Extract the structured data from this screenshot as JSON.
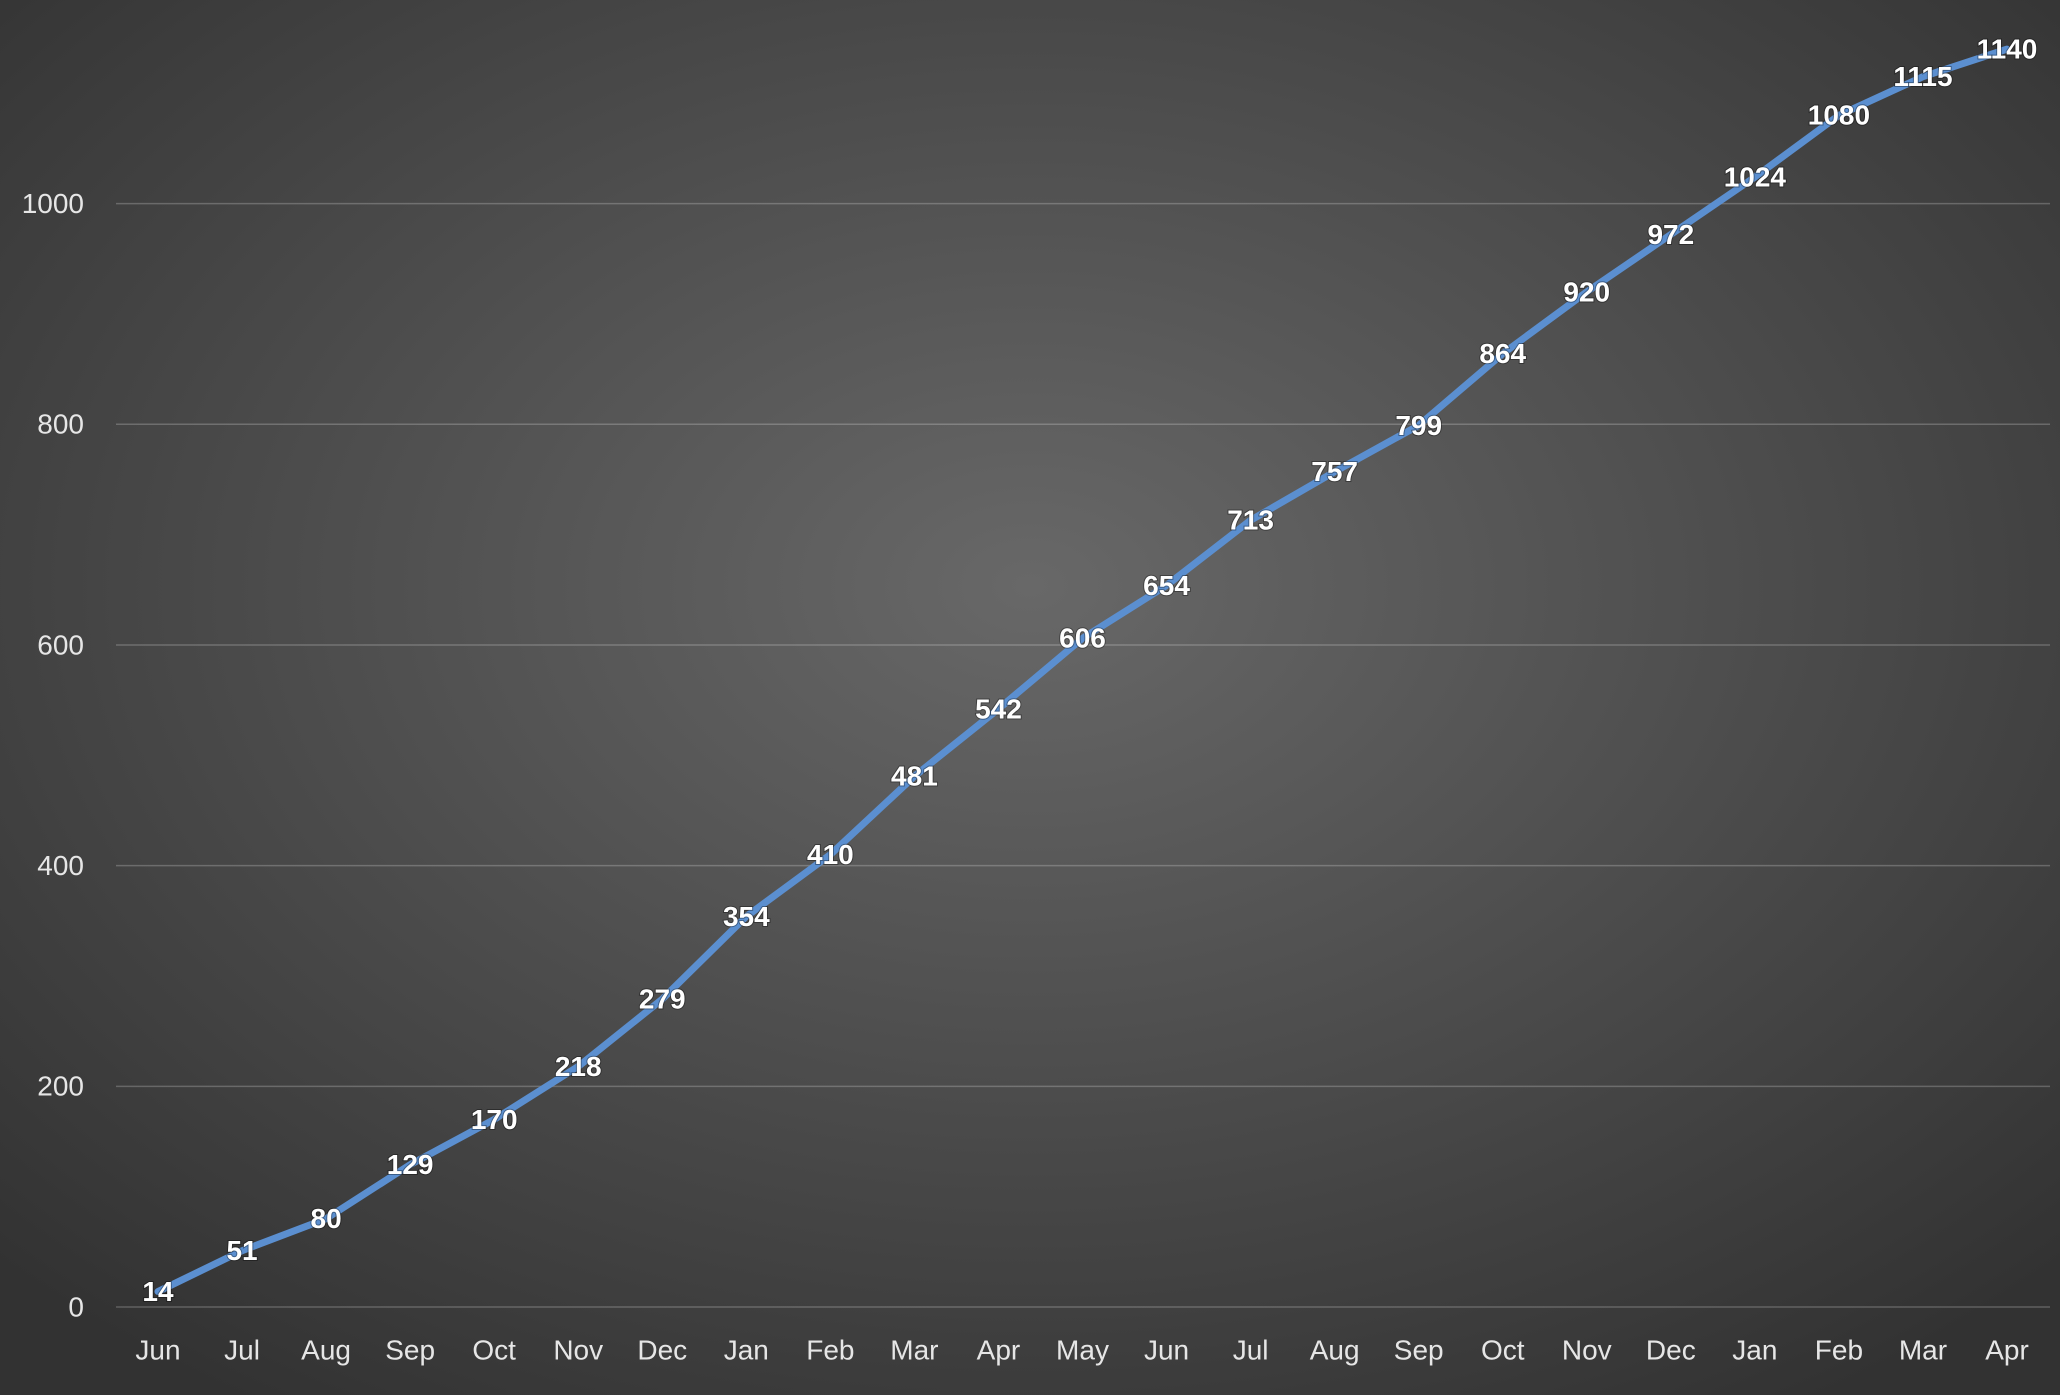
{
  "chart_data": {
    "type": "line",
    "categories": [
      "Jun",
      "Jul",
      "Aug",
      "Sep",
      "Oct",
      "Nov",
      "Dec",
      "Jan",
      "Feb",
      "Mar",
      "Apr",
      "May",
      "Jun",
      "Jul",
      "Aug",
      "Sep",
      "Oct",
      "Nov",
      "Dec",
      "Jan",
      "Feb",
      "Mar",
      "Apr"
    ],
    "series": [
      {
        "color": "#5b8fd0",
        "values": [
          14,
          51,
          80,
          129,
          170,
          218,
          279,
          354,
          410,
          481,
          542,
          606,
          654,
          713,
          757,
          799,
          864,
          920,
          972,
          1024,
          1080,
          1115,
          1140
        ]
      }
    ],
    "ylim": [
      0,
      1180
    ],
    "yticks": [
      0,
      200,
      400,
      600,
      800,
      1000
    ],
    "grid": true
  }
}
